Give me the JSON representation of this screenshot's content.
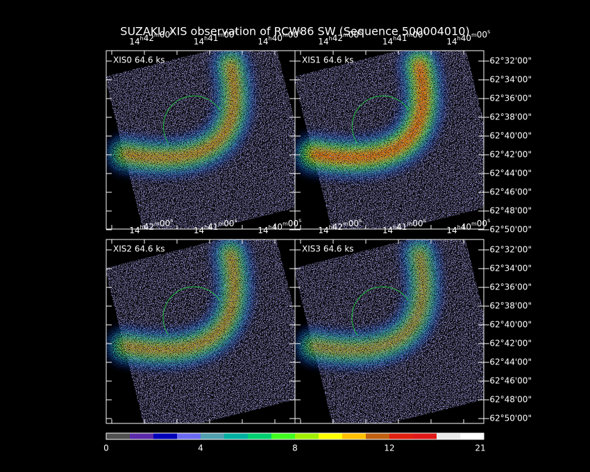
{
  "title": "SUZAKU XIS observation of RCW86 SW  (Sequence 500004010)",
  "panels": [
    {
      "label": "XIS0 64.6 ks"
    },
    {
      "label": "XIS1 64.6 ks"
    },
    {
      "label": "XIS2 64.6 ks"
    },
    {
      "label": "XIS3 64.6 ks"
    }
  ],
  "ra_ticks": [
    "14h42m00s",
    "14h41m00s",
    "14h40m00s"
  ],
  "dec_ticks": [
    "-62°32'00\"",
    "-62°34'00\"",
    "-62°36'00\"",
    "-62°38'00\"",
    "-62°40'00\"",
    "-62°42'00\"",
    "-62°44'00\"",
    "-62°46'00\"",
    "-62°48'00\"",
    "-62°50'00\""
  ],
  "colorbar": {
    "ticks": [
      0,
      4,
      8,
      12,
      21
    ]
  }
}
